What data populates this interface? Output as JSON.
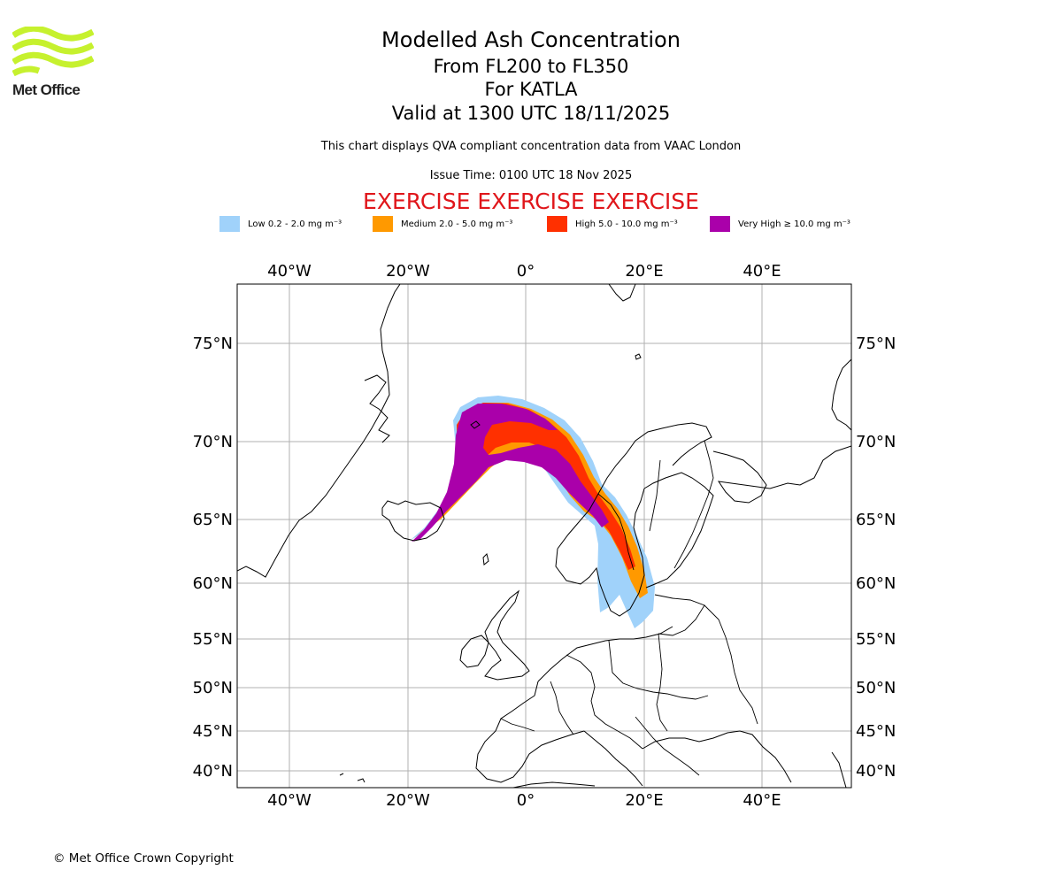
{
  "logo": {
    "name": "Met Office",
    "color": "#c6f12e"
  },
  "header": {
    "title": "Modelled Ash Concentration",
    "level_range": "From FL200 to FL350",
    "volcano": "For KATLA",
    "valid_time": "Valid at 1300 UTC 18/11/2025",
    "description": "This chart displays QVA compliant concentration data from VAAC London",
    "issue_time": "Issue Time: 0100 UTC 18 Nov 2025",
    "exercise_banner": "EXERCISE EXERCISE EXERCISE"
  },
  "legend": [
    {
      "label": "Low 0.2 - 2.0 mg m⁻³",
      "color": "#a0d2fa"
    },
    {
      "label": "Medium 2.0 - 5.0 mg m⁻³",
      "color": "#ff9900"
    },
    {
      "label": "High 5.0 - 10.0 mg m⁻³",
      "color": "#ff3000"
    },
    {
      "label": "Very High ≥ 10.0 mg m⁻³",
      "color": "#aa00aa"
    }
  ],
  "map": {
    "lon_ticks": [
      "40°W",
      "20°W",
      "0°",
      "20°E",
      "40°E"
    ],
    "lat_ticks": [
      "75°N",
      "70°N",
      "65°N",
      "60°N",
      "55°N",
      "50°N",
      "45°N",
      "40°N"
    ],
    "grid_color": "#b0b0b0"
  },
  "footer": {
    "copyright": "© Met Office Crown Copyright"
  }
}
